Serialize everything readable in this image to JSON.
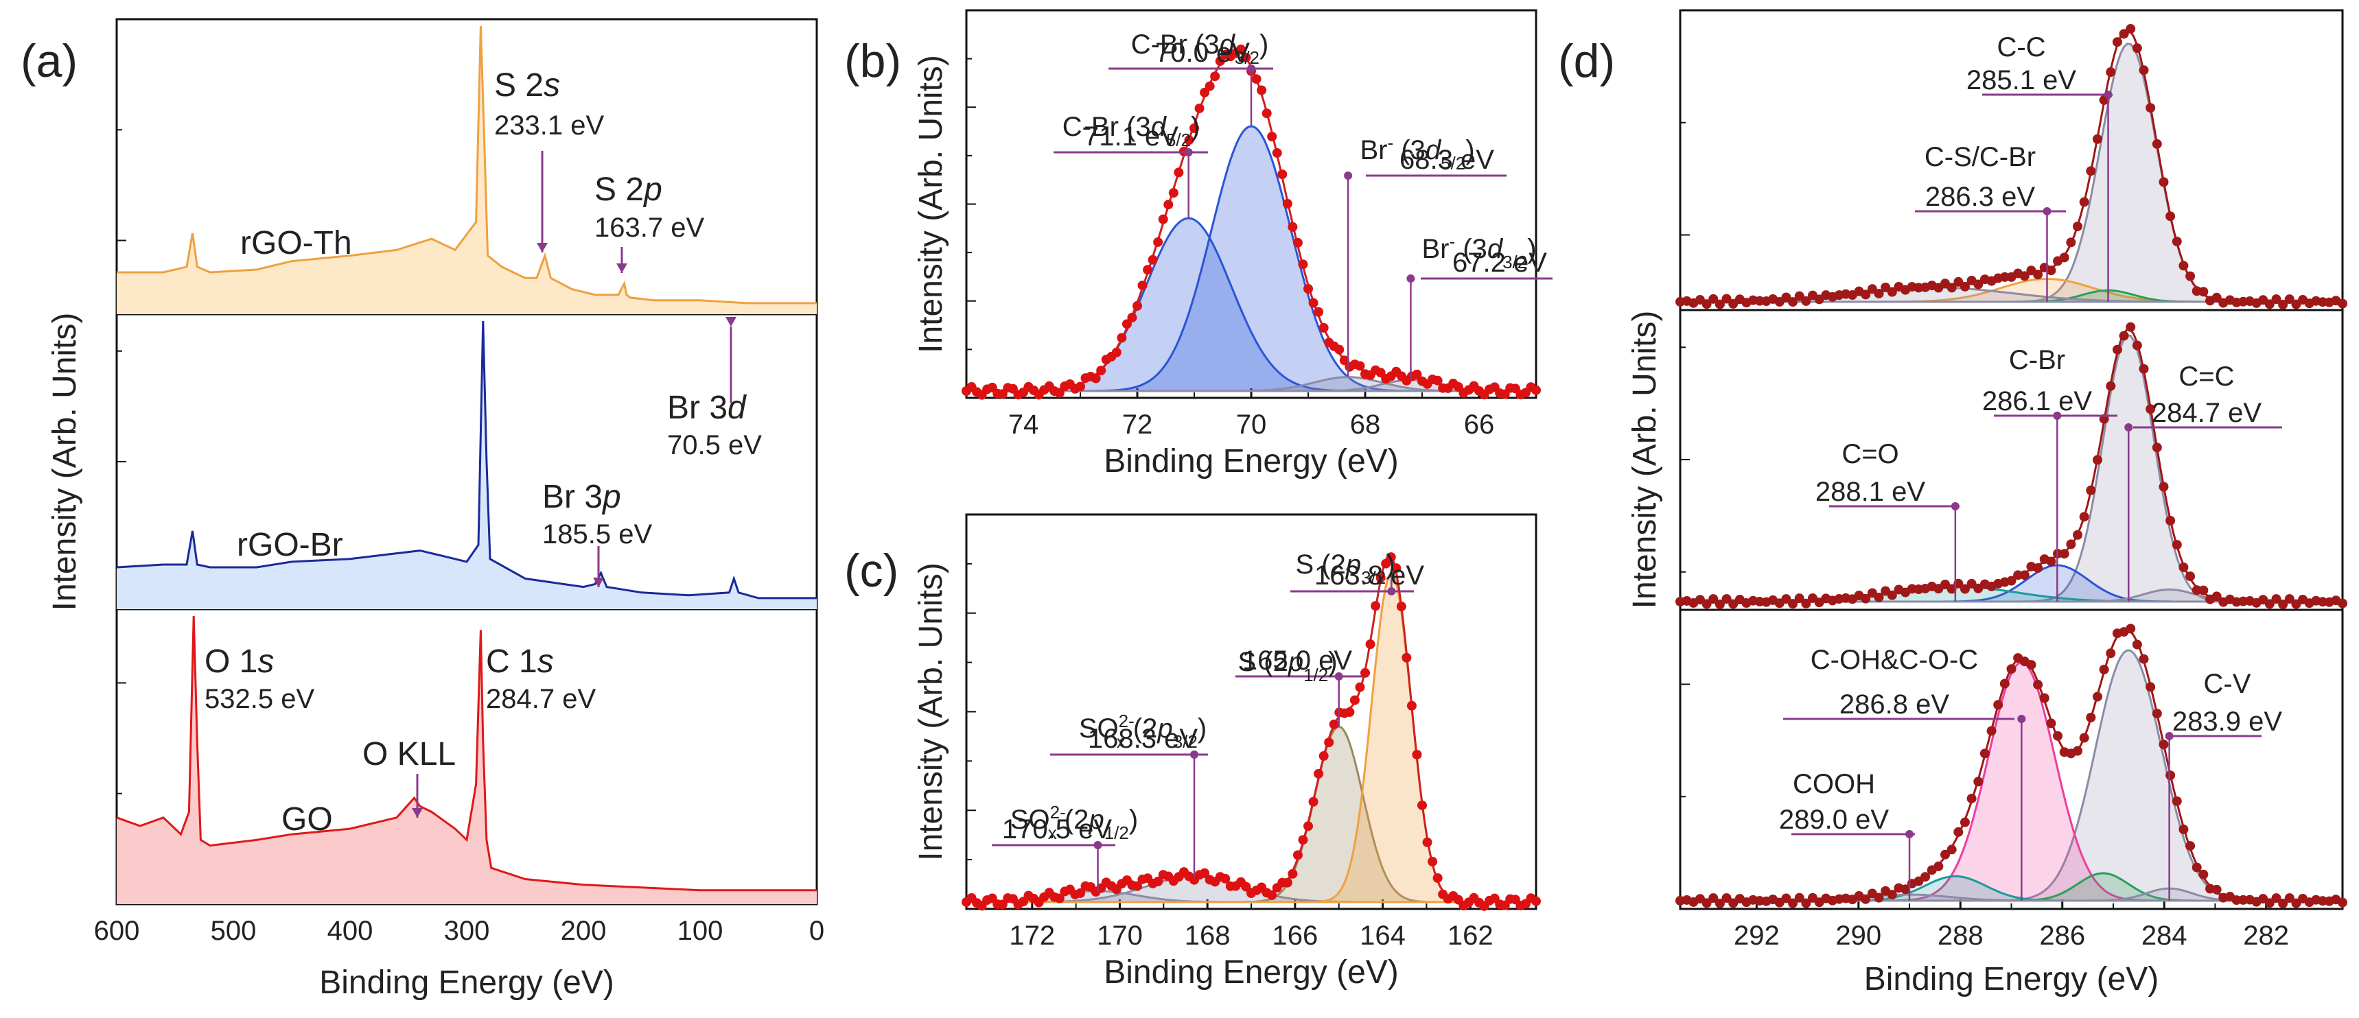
{
  "figure": {
    "panels": [
      "(a)",
      "(b)",
      "(c)",
      "(d)"
    ],
    "colors": {
      "axis": "#111111",
      "annot": "#8b3a8b",
      "th": "#f0a040",
      "br": "#1a2a9a",
      "go": "#e01818",
      "data": "#dd1111",
      "d_data": "#a01818",
      "peak_blue": "#2b55d8",
      "peak_gray": "#8c8ca8",
      "peak_orange": "#f0a040",
      "peak_green": "#28a058",
      "peak_pink": "#ef3d9e",
      "peak_teal": "#1b9a9a"
    }
  },
  "chart_data": [
    {
      "panel": "(a)",
      "type": "line",
      "xlabel": "Binding Energy (eV)",
      "ylabel": "Intensity (Arb. Units)",
      "xlim": [
        600,
        0
      ],
      "xticks": [
        "600",
        "500",
        "400",
        "300",
        "200",
        "100",
        "0"
      ],
      "series": [
        {
          "name": "rGO-Th",
          "color": "#f0a040",
          "x": [
            600,
            560,
            540,
            535,
            531,
            520,
            480,
            450,
            400,
            360,
            345,
            330,
            310,
            292,
            288,
            285,
            282,
            270,
            250,
            240,
            233,
            228,
            210,
            190,
            170,
            165,
            163,
            160,
            140,
            100,
            60,
            20,
            0
          ],
          "y": [
            0.12,
            0.12,
            0.14,
            0.26,
            0.14,
            0.12,
            0.13,
            0.16,
            0.18,
            0.2,
            0.22,
            0.24,
            0.2,
            0.3,
            1.0,
            0.6,
            0.18,
            0.14,
            0.1,
            0.1,
            0.18,
            0.1,
            0.06,
            0.04,
            0.04,
            0.08,
            0.04,
            0.03,
            0.02,
            0.02,
            0.01,
            0.01,
            0.01
          ]
        },
        {
          "name": "rGO-Br",
          "color": "#1a2a9a",
          "x": [
            600,
            560,
            540,
            535,
            531,
            520,
            480,
            450,
            400,
            360,
            340,
            320,
            300,
            290,
            286,
            283,
            280,
            250,
            200,
            190,
            185,
            180,
            150,
            110,
            75,
            71,
            67,
            50,
            20,
            0
          ],
          "y": [
            0.12,
            0.13,
            0.13,
            0.25,
            0.13,
            0.12,
            0.12,
            0.14,
            0.15,
            0.17,
            0.18,
            0.16,
            0.14,
            0.2,
            1.0,
            0.5,
            0.15,
            0.08,
            0.05,
            0.06,
            0.1,
            0.05,
            0.03,
            0.02,
            0.03,
            0.08,
            0.03,
            0.01,
            0.01,
            0.01
          ]
        },
        {
          "name": "GO",
          "color": "#e01818",
          "x": [
            600,
            580,
            560,
            545,
            538,
            534,
            531,
            528,
            520,
            480,
            450,
            400,
            360,
            345,
            340,
            330,
            310,
            300,
            292,
            288,
            286,
            283,
            279,
            250,
            200,
            150,
            100,
            50,
            0
          ],
          "y": [
            0.28,
            0.25,
            0.28,
            0.22,
            0.3,
            1.0,
            0.55,
            0.2,
            0.18,
            0.2,
            0.22,
            0.24,
            0.28,
            0.35,
            0.32,
            0.3,
            0.24,
            0.2,
            0.4,
            0.95,
            0.55,
            0.2,
            0.1,
            0.06,
            0.04,
            0.03,
            0.02,
            0.02,
            0.02
          ]
        }
      ],
      "trace_labels": [
        "rGO-Th",
        "rGO-Br",
        "GO"
      ],
      "annotations": [
        {
          "label": "S 2s",
          "value": "233.1 eV"
        },
        {
          "label": "S 2p",
          "value": "163.7 eV"
        },
        {
          "label": "Br 3p",
          "value": "185.5 eV"
        },
        {
          "label": "Br 3d",
          "value": "70.5 eV"
        },
        {
          "label": "O 1s",
          "value": "532.5 eV"
        },
        {
          "label": "C 1s",
          "value": "284.7 eV"
        },
        {
          "label": "O KLL",
          "value": ""
        }
      ]
    },
    {
      "panel": "(b)",
      "type": "line",
      "xlabel": "Binding Energy (eV)",
      "ylabel": "Intensity (Arb. Units)",
      "xlim": [
        75,
        65
      ],
      "xticks": [
        "74",
        "72",
        "70",
        "68",
        "66"
      ],
      "peaks": [
        {
          "center": 71.1,
          "sigma": 0.75,
          "amp": 0.62,
          "color": "#2b55d8"
        },
        {
          "center": 70.0,
          "sigma": 0.7,
          "amp": 0.95,
          "color": "#2b55d8"
        },
        {
          "center": 68.3,
          "sigma": 0.6,
          "amp": 0.05,
          "color": "#8c8ca8"
        },
        {
          "center": 67.2,
          "sigma": 0.5,
          "amp": 0.04,
          "color": "#8c8ca8"
        }
      ],
      "annotations": [
        {
          "main": "C-Br (3d",
          "sub": "5/2",
          "tail": ")",
          "value": "71.1 eV"
        },
        {
          "main": "C-Br (3d",
          "sub": "3/2",
          "tail": ")",
          "value": "70.0 eV"
        },
        {
          "main": "Br",
          "sup": "-",
          "main2": " (3d",
          "sub": "5/2",
          "tail": ")",
          "value": "68.3 eV"
        },
        {
          "main": "Br",
          "sup": "-",
          "main2": " (3d",
          "sub": "3/2",
          "tail": ")",
          "value": "67.2 eV"
        }
      ]
    },
    {
      "panel": "(c)",
      "type": "line",
      "xlabel": "Binding Energy (eV)",
      "ylabel": "Intensity (Arb. Units)",
      "xlim": [
        173.5,
        160.5
      ],
      "xticks": [
        "172",
        "170",
        "168",
        "166",
        "164",
        "162"
      ],
      "peaks": [
        {
          "center": 170.5,
          "sigma": 0.9,
          "amp": 0.03,
          "color": "#8c8ca8"
        },
        {
          "center": 168.3,
          "sigma": 1.1,
          "amp": 0.07,
          "color": "#8c8ca8"
        },
        {
          "center": 165.0,
          "sigma": 0.55,
          "amp": 0.48,
          "color": "#9a8860"
        },
        {
          "center": 163.8,
          "sigma": 0.45,
          "amp": 0.9,
          "color": "#f0a040"
        }
      ],
      "annotations": [
        {
          "main": "SO",
          "subsup": [
            "x",
            "2-"
          ],
          "main2": " (2p",
          "sub": "1/2",
          "tail": ")",
          "value": "170.5 eV"
        },
        {
          "main": "SO",
          "subsup": [
            "x",
            "2-"
          ],
          "main2": " (2p",
          "sub": "3/2",
          "tail": ")",
          "value": "168.3 eV"
        },
        {
          "main": "S (2p",
          "sub": "1/2",
          "tail": ")",
          "value": "165.0 eV"
        },
        {
          "main": "S (2p",
          "sub": "3/2",
          "tail": ")",
          "value": "163.8 eV"
        }
      ]
    },
    {
      "panel": "(d)",
      "type": "line",
      "xlabel": "Binding Energy (eV)",
      "ylabel": "Intensity (Arb. Units)",
      "xlim": [
        293.5,
        280.5
      ],
      "xticks": [
        "292",
        "290",
        "288",
        "286",
        "284",
        "282"
      ],
      "subplots": [
        {
          "name": "top",
          "peaks": [
            {
              "center": 284.7,
              "sigma": 0.55,
              "amp": 0.9,
              "color": "#8c8ca8"
            },
            {
              "center": 286.3,
              "sigma": 0.9,
              "amp": 0.08,
              "color": "#f0a040"
            },
            {
              "center": 285.1,
              "sigma": 0.5,
              "amp": 0.04,
              "color": "#28a058"
            },
            {
              "center": 288.5,
              "sigma": 1.5,
              "amp": 0.05,
              "color": "#8c8ca8"
            }
          ],
          "annotations": [
            {
              "label": "C-C",
              "value": "285.1 eV"
            },
            {
              "label": "C-S/C-Br",
              "value": "286.3 eV"
            }
          ]
        },
        {
          "name": "middle",
          "peaks": [
            {
              "center": 284.7,
              "sigma": 0.5,
              "amp": 0.88,
              "color": "#8c8ca8"
            },
            {
              "center": 286.1,
              "sigma": 0.6,
              "amp": 0.12,
              "color": "#2b55d8"
            },
            {
              "center": 288.1,
              "sigma": 1.2,
              "amp": 0.05,
              "color": "#1b9a9a"
            },
            {
              "center": 283.9,
              "sigma": 0.5,
              "amp": 0.04,
              "color": "#8c8ca8"
            }
          ],
          "annotations": [
            {
              "label": "C-Br",
              "value": "286.1 eV"
            },
            {
              "label": "C=C",
              "value": "284.7 eV"
            },
            {
              "label": "C=O",
              "value": "288.1 eV"
            }
          ]
        },
        {
          "name": "bottom",
          "peaks": [
            {
              "center": 284.7,
              "sigma": 0.65,
              "amp": 0.82,
              "color": "#8c8ca8"
            },
            {
              "center": 286.8,
              "sigma": 0.65,
              "amp": 0.78,
              "color": "#ef3d9e"
            },
            {
              "center": 288.1,
              "sigma": 0.6,
              "amp": 0.08,
              "color": "#1b9a9a"
            },
            {
              "center": 285.2,
              "sigma": 0.5,
              "amp": 0.09,
              "color": "#28a058"
            },
            {
              "center": 283.9,
              "sigma": 0.45,
              "amp": 0.04,
              "color": "#8c8ca8"
            },
            {
              "center": 289.0,
              "sigma": 0.8,
              "amp": 0.02,
              "color": "#8c8ca8"
            }
          ],
          "annotations": [
            {
              "label": "C-OH&C-O-C",
              "value": "286.8 eV"
            },
            {
              "label": "C-V",
              "value": "283.9 eV"
            },
            {
              "label": "COOH",
              "value": "289.0 eV"
            }
          ]
        }
      ]
    }
  ]
}
